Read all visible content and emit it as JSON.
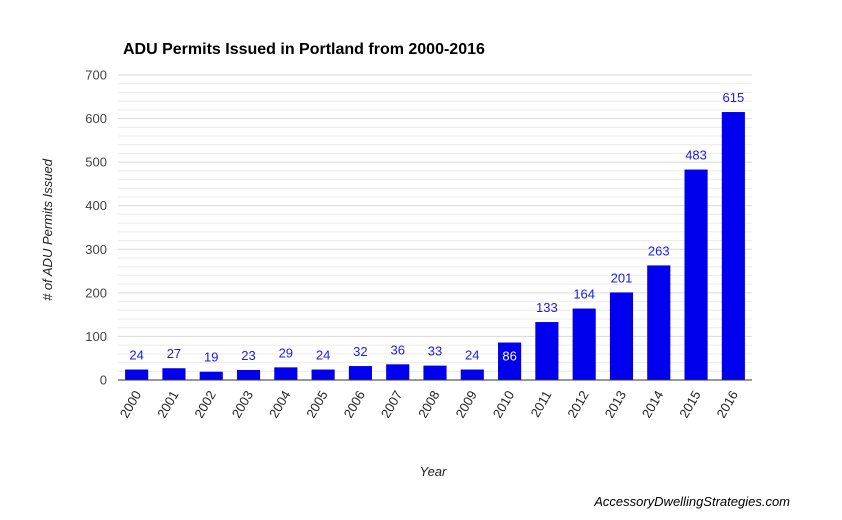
{
  "chart_data": {
    "type": "bar",
    "title": "ADU Permits Issued in Portland from 2000-2016",
    "xlabel": "Year",
    "ylabel": "# of ADU Permits Issued",
    "ylim": [
      0,
      700
    ],
    "yticks": [
      0,
      100,
      200,
      300,
      400,
      500,
      600,
      700
    ],
    "grid": true,
    "legend": "none",
    "categories": [
      "2000",
      "2001",
      "2002",
      "2003",
      "2004",
      "2005",
      "2006",
      "2007",
      "2008",
      "2009",
      "2010",
      "2011",
      "2012",
      "2013",
      "2014",
      "2015",
      "2016"
    ],
    "values": [
      24,
      27,
      19,
      23,
      29,
      24,
      32,
      36,
      33,
      24,
      86,
      133,
      164,
      201,
      263,
      483,
      615
    ],
    "data_labels": [
      "24",
      "27",
      "19",
      "23",
      "29",
      "24",
      "32",
      "36",
      "33",
      "24",
      "86",
      "133",
      "164",
      "201",
      "263",
      "483",
      "615"
    ],
    "colors": {
      "bar": "#0000ee",
      "label": "#1a1aee",
      "label_inside": "#ffffff",
      "grid": "#d9d9d9",
      "minor_grid": "#ececec",
      "axis": "#333333"
    }
  },
  "footer": {
    "source": "AccessoryDwellingStrategies.com"
  }
}
